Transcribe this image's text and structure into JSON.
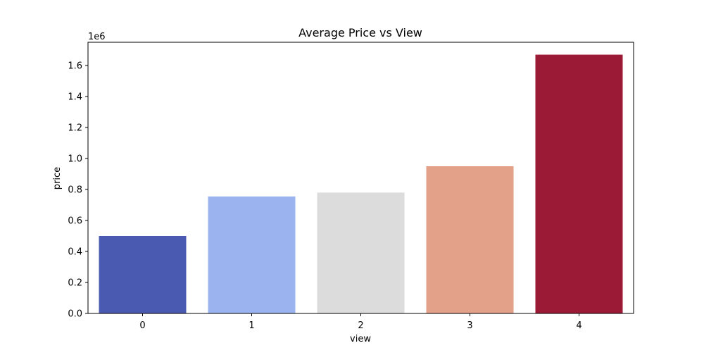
{
  "chart_data": {
    "type": "bar",
    "title": "Average Price vs View",
    "xlabel": "view",
    "ylabel": "price",
    "y_offset_label": "1e6",
    "categories": [
      "0",
      "1",
      "2",
      "3",
      "4"
    ],
    "values": [
      500000,
      755000,
      780000,
      950000,
      1670000
    ],
    "colors": [
      "#4b5ab1",
      "#9bb4ef",
      "#dcdcdc",
      "#e3a18a",
      "#9b1a35"
    ],
    "ylim": [
      0,
      1750000
    ],
    "yticks": [
      {
        "value": 0,
        "label": "0.0"
      },
      {
        "value": 200000,
        "label": "0.2"
      },
      {
        "value": 400000,
        "label": "0.4"
      },
      {
        "value": 600000,
        "label": "0.6"
      },
      {
        "value": 800000,
        "label": "0.8"
      },
      {
        "value": 1000000,
        "label": "1.0"
      },
      {
        "value": 1200000,
        "label": "1.2"
      },
      {
        "value": 1400000,
        "label": "1.4"
      },
      {
        "value": 1600000,
        "label": "1.6"
      }
    ],
    "grid": false,
    "legend": "none"
  }
}
